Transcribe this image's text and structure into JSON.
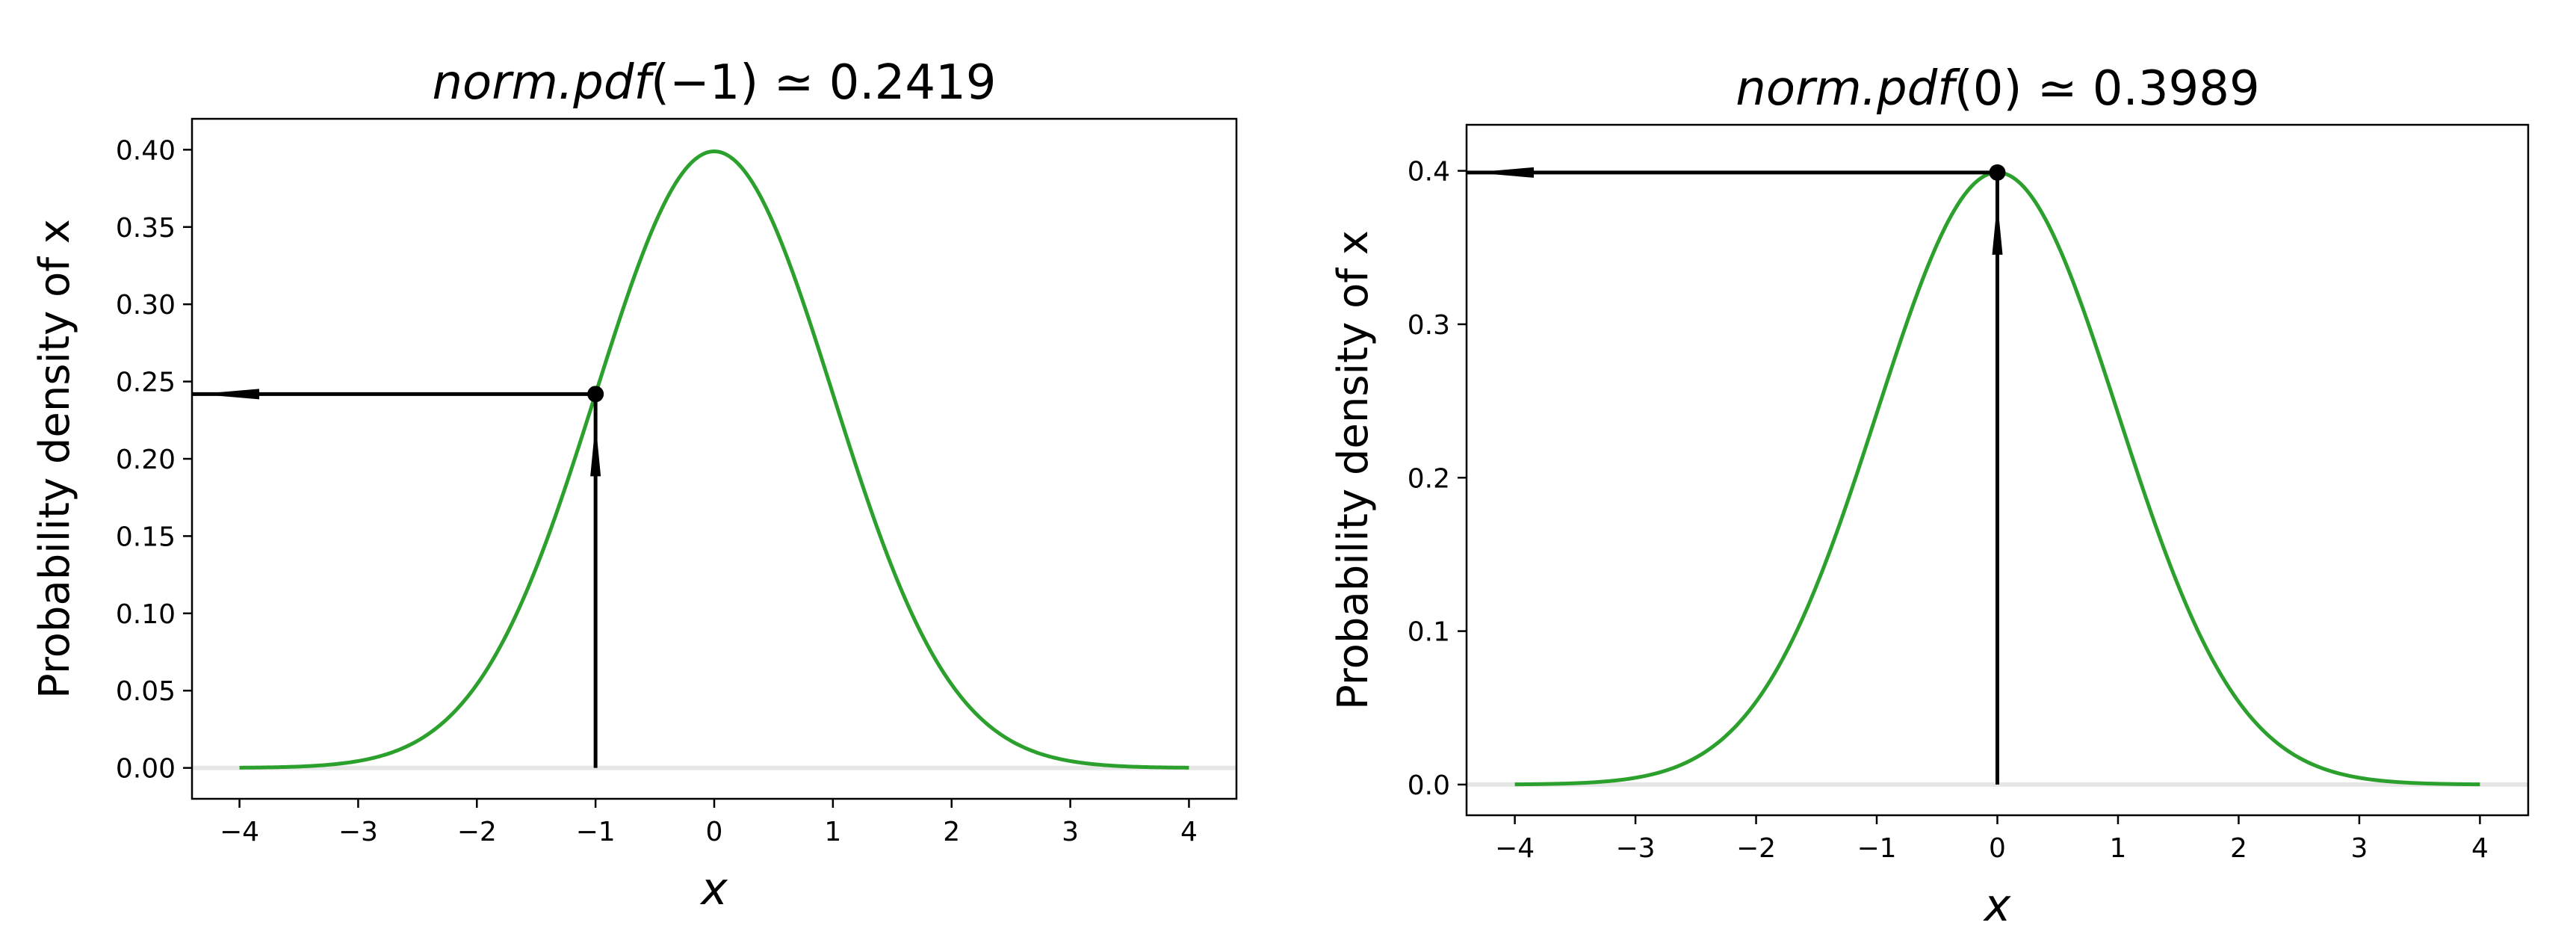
{
  "colors": {
    "curve": "#2ca02c",
    "baseline": "#e6e6e6",
    "arrow": "#000000",
    "marker": "#000000"
  },
  "chart_data": [
    {
      "type": "line",
      "title": {
        "italic_part": "norm.pdf",
        "rest": "(−1) ≃ 0.2419"
      },
      "xlabel": "x",
      "ylabel": "Probability density of x",
      "xlim": [
        -4.4,
        4.4
      ],
      "ylim": [
        -0.02,
        0.42
      ],
      "xticks": [
        -4,
        -3,
        -2,
        -1,
        0,
        1,
        2,
        3,
        4
      ],
      "xtick_labels": [
        "−4",
        "−3",
        "−2",
        "−1",
        "0",
        "1",
        "2",
        "3",
        "4"
      ],
      "yticks": [
        0,
        0.05,
        0.1,
        0.15,
        0.2,
        0.25,
        0.3,
        0.35,
        0.4
      ],
      "ytick_labels": [
        "0.00",
        "0.05",
        "0.10",
        "0.15",
        "0.20",
        "0.25",
        "0.30",
        "0.35",
        "0.40"
      ],
      "series": [
        {
          "x_range": [
            -4,
            4
          ],
          "function": "standard normal pdf"
        }
      ],
      "baseline_y": 0,
      "point": {
        "x": -1,
        "y": 0.2419
      },
      "arrows": [
        {
          "from": [
            -1,
            0
          ],
          "to": [
            -1,
            0.2419
          ],
          "direction": "up"
        },
        {
          "from": [
            -1,
            0.2419
          ],
          "to": [
            -4.4,
            0.2419
          ],
          "direction": "left"
        }
      ],
      "grid": false
    },
    {
      "type": "line",
      "title": {
        "italic_part": "norm.pdf",
        "rest": "(0) ≃ 0.3989"
      },
      "xlabel": "x",
      "ylabel": "Probability density of x",
      "xlim": [
        -4.4,
        4.4
      ],
      "ylim": [
        -0.02,
        0.43
      ],
      "xticks": [
        -4,
        -3,
        -2,
        -1,
        0,
        1,
        2,
        3,
        4
      ],
      "xtick_labels": [
        "−4",
        "−3",
        "−2",
        "−1",
        "0",
        "1",
        "2",
        "3",
        "4"
      ],
      "yticks": [
        0,
        0.1,
        0.2,
        0.3,
        0.4
      ],
      "ytick_labels": [
        "0.0",
        "0.1",
        "0.2",
        "0.3",
        "0.4"
      ],
      "series": [
        {
          "x_range": [
            -4,
            4
          ],
          "function": "standard normal pdf"
        }
      ],
      "baseline_y": 0,
      "point": {
        "x": 0,
        "y": 0.3989
      },
      "arrows": [
        {
          "from": [
            0,
            0
          ],
          "to": [
            0,
            0.3989
          ],
          "direction": "up"
        },
        {
          "from": [
            0,
            0.3989
          ],
          "to": [
            -4.4,
            0.3989
          ],
          "direction": "left"
        }
      ],
      "grid": false
    }
  ]
}
